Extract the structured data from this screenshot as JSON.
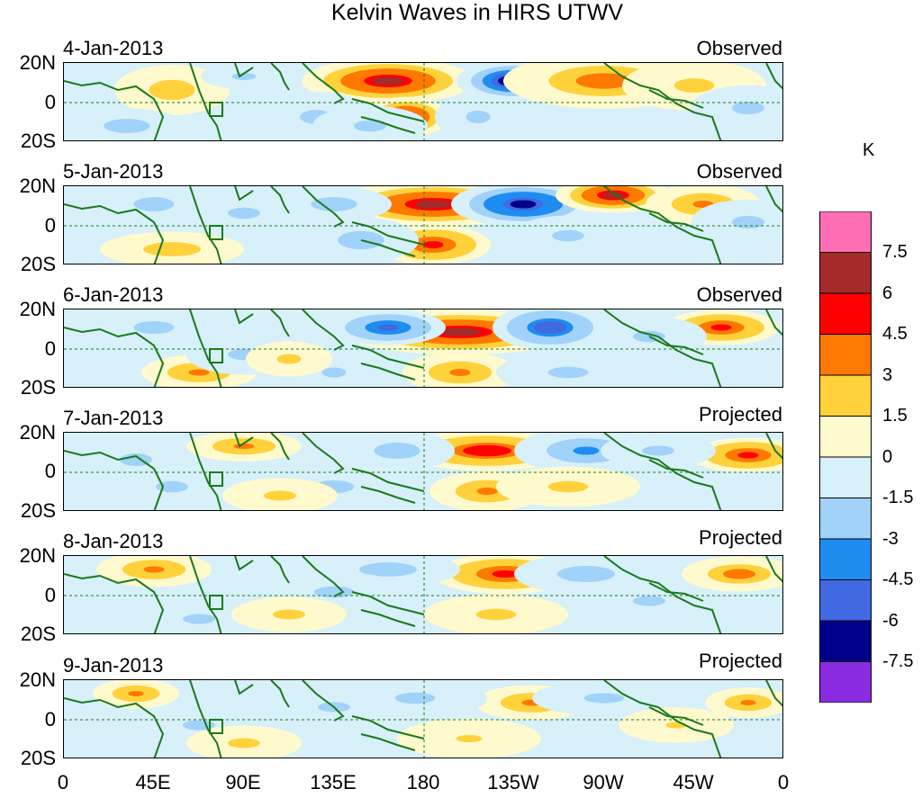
{
  "title": "Kelvin Waves in HIRS UTWV",
  "units": "K",
  "panels": [
    {
      "date": "4-Jan-2013",
      "status": "Observed"
    },
    {
      "date": "5-Jan-2013",
      "status": "Observed"
    },
    {
      "date": "6-Jan-2013",
      "status": "Observed"
    },
    {
      "date": "7-Jan-2013",
      "status": "Projected"
    },
    {
      "date": "8-Jan-2013",
      "status": "Projected"
    },
    {
      "date": "9-Jan-2013",
      "status": "Projected"
    }
  ],
  "lat_labels": [
    "20N",
    "0",
    "20S"
  ],
  "lon_labels": [
    "0",
    "45E",
    "90E",
    "135E",
    "180",
    "135W",
    "90W",
    "45W",
    "0"
  ],
  "colorbar": {
    "labels": [
      "7.5",
      "6",
      "4.5",
      "3",
      "1.5",
      "0",
      "-1.5",
      "-3",
      "-4.5",
      "-6",
      "-7.5"
    ],
    "colors": [
      "#ff6eb4",
      "#a52a2a",
      "#ff0000",
      "#ff7800",
      "#ffd23c",
      "#fffacd",
      "#d7f0fa",
      "#a0d2fa",
      "#1e8cf0",
      "#4169e1",
      "#00008c",
      "#8a2be2"
    ]
  },
  "colors": {
    "coastline": "#1a7a1a",
    "reference_line": "#1a7a1a"
  }
}
